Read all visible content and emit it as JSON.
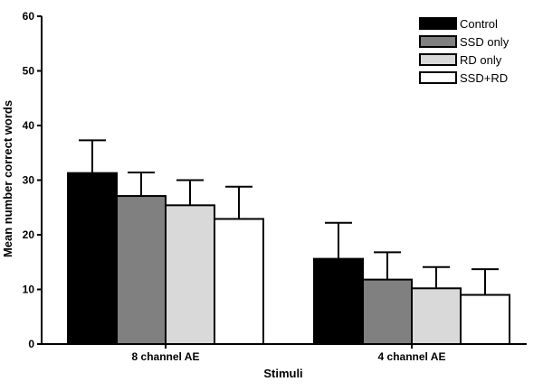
{
  "chart_data": {
    "type": "bar",
    "title": "",
    "xlabel": "Stimuli",
    "ylabel": "Mean number correct words",
    "categories": [
      "8 channel AE",
      "4 channel AE"
    ],
    "ylim": [
      0,
      60
    ],
    "yticks": [
      0,
      10,
      20,
      30,
      40,
      50,
      60
    ],
    "error_bars": "upper only",
    "legend_position": "top-right",
    "series": [
      {
        "name": "Control",
        "color": "#000000",
        "values": [
          31.3,
          15.6
        ],
        "errors": [
          6.0,
          6.6
        ]
      },
      {
        "name": "SSD only",
        "color": "#808080",
        "values": [
          27.1,
          11.8
        ],
        "errors": [
          4.3,
          5.0
        ]
      },
      {
        "name": "RD only",
        "color": "#d9d9d9",
        "values": [
          25.4,
          10.2
        ],
        "errors": [
          4.6,
          3.9
        ]
      },
      {
        "name": "SSD+RD",
        "color": "#ffffff",
        "values": [
          22.9,
          9.0
        ],
        "errors": [
          5.9,
          4.7
        ]
      }
    ]
  }
}
